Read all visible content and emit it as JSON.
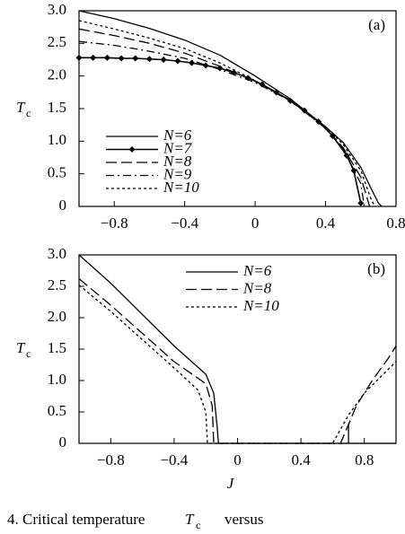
{
  "chart_data": [
    {
      "type": "line",
      "panel_label": "(a)",
      "ylabel": "T",
      "ylabel_subscript": "c",
      "xlim": [
        -1.0,
        0.8
      ],
      "ylim": [
        0,
        3.0
      ],
      "xticks": [
        {
          "value": -0.8,
          "label": "−0.8"
        },
        {
          "value": -0.4,
          "label": "−0.4"
        },
        0,
        0.4,
        0.8
      ],
      "yticks": [
        0,
        0.5,
        {
          "value": 1.0,
          "label": "1.0"
        },
        1.5,
        {
          "value": 2.0,
          "label": "2.0"
        },
        2.5,
        {
          "value": 3.0,
          "label": "3.0"
        }
      ],
      "legend": "lower left",
      "series": [
        {
          "name": "N=6",
          "color": "#000000",
          "dash": "solid",
          "x": [
            -1.0,
            -0.8,
            -0.6,
            -0.4,
            -0.2,
            0.0,
            0.2,
            0.4,
            0.5,
            0.6,
            0.65,
            0.7,
            0.72
          ],
          "values": [
            3.0,
            2.88,
            2.73,
            2.55,
            2.32,
            2.0,
            1.65,
            1.22,
            0.98,
            0.6,
            0.32,
            0.05,
            0
          ]
        },
        {
          "name": "N=7",
          "color": "#000000",
          "dash": "solid",
          "marker": "diamond",
          "x": [
            -1.0,
            -0.92,
            -0.84,
            -0.76,
            -0.68,
            -0.6,
            -0.52,
            -0.44,
            -0.36,
            -0.28,
            -0.2,
            -0.12,
            -0.04,
            0.04,
            0.12,
            0.2,
            0.28,
            0.36,
            0.44,
            0.52,
            0.56,
            0.6
          ],
          "values": [
            2.28,
            2.28,
            2.28,
            2.27,
            2.27,
            2.26,
            2.25,
            2.23,
            2.2,
            2.16,
            2.12,
            2.05,
            1.97,
            1.87,
            1.75,
            1.62,
            1.47,
            1.3,
            1.08,
            0.78,
            0.55,
            0.05
          ]
        },
        {
          "name": "N=8",
          "color": "#000000",
          "dash": "long",
          "x": [
            -1.0,
            -0.8,
            -0.6,
            -0.4,
            -0.2,
            0.0,
            0.2,
            0.4,
            0.5,
            0.6,
            0.65
          ],
          "values": [
            2.72,
            2.62,
            2.5,
            2.35,
            2.15,
            1.92,
            1.63,
            1.2,
            0.9,
            0.45,
            0
          ]
        },
        {
          "name": "N=9",
          "color": "#000000",
          "dash": "dashdot",
          "x": [
            -1.0,
            -0.8,
            -0.6,
            -0.4,
            -0.2,
            0.0,
            0.2,
            0.4,
            0.5,
            0.6,
            0.62
          ],
          "values": [
            2.53,
            2.47,
            2.38,
            2.27,
            2.1,
            1.9,
            1.62,
            1.2,
            0.88,
            0.35,
            0
          ]
        },
        {
          "name": "N=10",
          "color": "#000000",
          "dash": "dot",
          "x": [
            -1.0,
            -0.8,
            -0.6,
            -0.4,
            -0.2,
            0.0,
            0.2,
            0.4,
            0.5,
            0.6,
            0.66,
            0.68
          ],
          "values": [
            2.85,
            2.72,
            2.58,
            2.42,
            2.2,
            1.93,
            1.62,
            1.22,
            0.95,
            0.55,
            0.1,
            0
          ]
        }
      ]
    },
    {
      "type": "line",
      "panel_label": "(b)",
      "ylabel": "T",
      "ylabel_subscript": "c",
      "xlabel": "J",
      "xlim": [
        -1.0,
        1.0
      ],
      "ylim": [
        0,
        3.0
      ],
      "xticks": [
        {
          "value": -0.8,
          "label": "−0.8"
        },
        {
          "value": -0.4,
          "label": "−0.4"
        },
        0,
        0.4,
        0.8
      ],
      "yticks": [
        0,
        0.5,
        {
          "value": 1.0,
          "label": "1.0"
        },
        1.5,
        {
          "value": 2.0,
          "label": "2.0"
        },
        2.5,
        {
          "value": 3.0,
          "label": "3.0"
        }
      ],
      "legend": "upper center",
      "series": [
        {
          "name": "N=6",
          "color": "#000000",
          "dash": "solid",
          "x": [
            -1.0,
            -0.8,
            -0.6,
            -0.4,
            -0.2,
            -0.15,
            -0.13,
            -0.12,
            0.7,
            0.7,
            0.7,
            1.0
          ],
          "values": [
            3.0,
            2.55,
            2.05,
            1.55,
            1.1,
            0.8,
            0.3,
            0,
            0,
            0.32,
            0,
            0
          ]
        },
        {
          "name": "N=8",
          "color": "#000000",
          "dash": "long",
          "x": [
            -1.0,
            -0.8,
            -0.6,
            -0.4,
            -0.2,
            -0.16,
            -0.15,
            0.65,
            0.75,
            0.85,
            0.95,
            1.0
          ],
          "values": [
            2.62,
            2.2,
            1.75,
            1.3,
            0.95,
            0.6,
            0,
            0,
            0.6,
            1.0,
            1.35,
            1.55
          ]
        },
        {
          "name": "N=10",
          "color": "#000000",
          "dash": "dot",
          "x": [
            -1.0,
            -0.8,
            -0.6,
            -0.4,
            -0.25,
            -0.2,
            -0.19,
            0.6,
            0.7,
            0.8,
            0.9,
            1.0
          ],
          "values": [
            2.52,
            2.1,
            1.65,
            1.2,
            0.85,
            0.5,
            0,
            0,
            0.45,
            0.8,
            1.05,
            1.3
          ]
        }
      ]
    }
  ],
  "caption": {
    "text": "4.  Critical temperature",
    "symbol": "T",
    "subscript": "c",
    "tail": "versus"
  }
}
